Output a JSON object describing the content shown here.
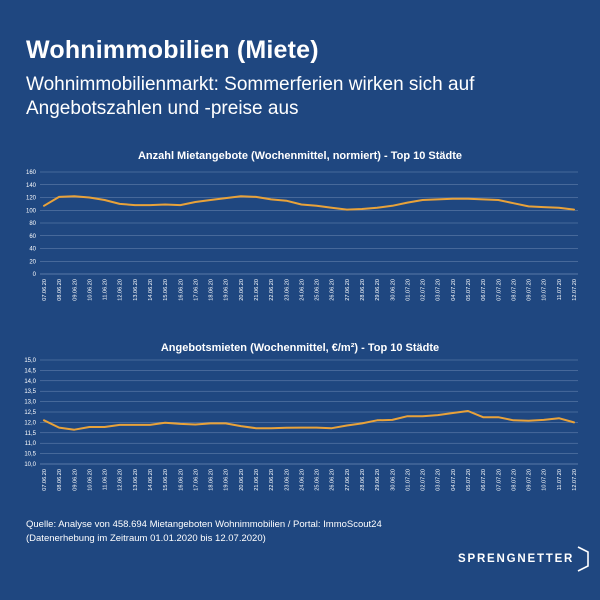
{
  "header": {
    "title": "Wohnimmobilien (Miete)",
    "subtitle": "Wohnimmobilienmarkt: Sommerferien wirken sich auf Angebotszahlen und -preise aus"
  },
  "colors": {
    "background": "#1f4780",
    "line": "#e8a23a",
    "grid": "#6f8bb4"
  },
  "chart_data": [
    {
      "type": "line",
      "title": "Anzahl Mietangebote (Wochenmittel, normiert) - Top 10 Städte",
      "xlabel": "",
      "ylabel": "",
      "ylim": [
        0,
        160
      ],
      "yticks": [
        "0",
        "20",
        "40",
        "60",
        "80",
        "100",
        "120",
        "140",
        "160"
      ],
      "ytick_values": [
        0,
        20,
        40,
        60,
        80,
        100,
        120,
        140,
        160
      ],
      "categories": [
        "07.06.20",
        "08.06.20",
        "09.06.20",
        "10.06.20",
        "11.06.20",
        "12.06.20",
        "13.06.20",
        "14.06.20",
        "15.06.20",
        "16.06.20",
        "17.06.20",
        "18.06.20",
        "19.06.20",
        "20.06.20",
        "21.06.20",
        "22.06.20",
        "23.06.20",
        "24.06.20",
        "25.06.20",
        "26.06.20",
        "27.06.20",
        "28.06.20",
        "29.06.20",
        "30.06.20",
        "01.07.20",
        "02.07.20",
        "03.07.20",
        "04.07.20",
        "05.07.20",
        "06.07.20",
        "07.07.20",
        "08.07.20",
        "09.07.20",
        "10.07.20",
        "11.07.20",
        "12.07.20"
      ],
      "series": [
        {
          "name": "Anzahl Mietangebote",
          "values": [
            107,
            121,
            122,
            120,
            116,
            110,
            108,
            108,
            109,
            108,
            113,
            116,
            119,
            122,
            121,
            117,
            115,
            109,
            107,
            104,
            101,
            102,
            104,
            107,
            112,
            116,
            117,
            118,
            118,
            117,
            116,
            111,
            106,
            105,
            104,
            101
          ]
        }
      ]
    },
    {
      "type": "line",
      "title": "Angebotsmieten (Wochenmittel, €/m²) - Top 10 Städte",
      "xlabel": "",
      "ylabel": "",
      "ylim": [
        10.0,
        15.0
      ],
      "yticks": [
        "10,0",
        "10,5",
        "11,0",
        "11,5",
        "12,0",
        "12,5",
        "13,0",
        "13,5",
        "14,0",
        "14,5",
        "15,0"
      ],
      "ytick_values": [
        10.0,
        10.5,
        11.0,
        11.5,
        12.0,
        12.5,
        13.0,
        13.5,
        14.0,
        14.5,
        15.0
      ],
      "categories": [
        "07.06.20",
        "08.06.20",
        "09.06.20",
        "10.06.20",
        "11.06.20",
        "12.06.20",
        "13.06.20",
        "14.06.20",
        "15.06.20",
        "16.06.20",
        "17.06.20",
        "18.06.20",
        "19.06.20",
        "20.06.20",
        "21.06.20",
        "22.06.20",
        "23.06.20",
        "24.06.20",
        "25.06.20",
        "26.06.20",
        "27.06.20",
        "28.06.20",
        "29.06.20",
        "30.06.20",
        "01.07.20",
        "02.07.20",
        "03.07.20",
        "04.07.20",
        "05.07.20",
        "06.07.20",
        "07.07.20",
        "08.07.20",
        "09.07.20",
        "10.07.20",
        "11.07.20",
        "12.07.20"
      ],
      "series": [
        {
          "name": "Angebotsmieten",
          "values": [
            12.1,
            11.75,
            11.65,
            11.78,
            11.78,
            11.88,
            11.88,
            11.88,
            11.98,
            11.93,
            11.9,
            11.95,
            11.95,
            11.82,
            11.72,
            11.72,
            11.74,
            11.75,
            11.75,
            11.72,
            11.85,
            11.95,
            12.1,
            12.12,
            12.3,
            12.3,
            12.35,
            12.45,
            12.55,
            12.25,
            12.25,
            12.1,
            12.08,
            12.12,
            12.2,
            12.0
          ]
        }
      ]
    }
  ],
  "footer": {
    "source_line1": "Quelle: Analyse von  458.694 Mietangeboten Wohnimmobilien / Portal: ImmoScout24",
    "source_line2": "(Datenerhebung im Zeitraum 01.01.2020 bis  12.07.2020)",
    "logo_text": "SPRENGNETTER"
  }
}
